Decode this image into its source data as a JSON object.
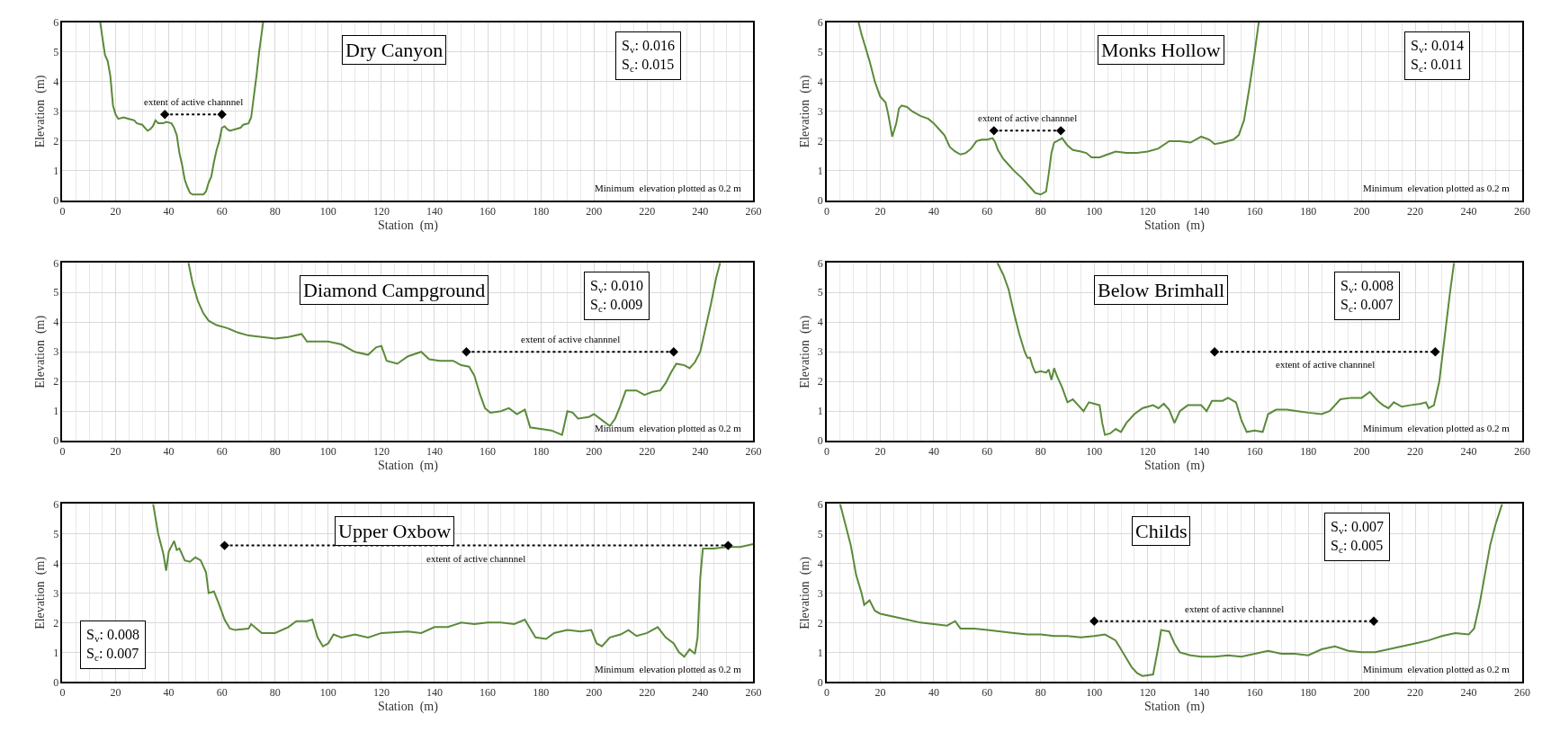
{
  "chart_data": [
    {
      "type": "line",
      "title": "Dry Canyon",
      "xlabel": "Station  (m)",
      "ylabel": "Elevation  (m)",
      "xlim": [
        0,
        260
      ],
      "xticks": [
        0,
        20,
        40,
        60,
        80,
        100,
        120,
        140,
        160,
        180,
        200,
        220,
        240,
        260
      ],
      "ylim": [
        0,
        6
      ],
      "yticks": [
        0,
        1,
        2,
        3,
        4,
        5,
        6
      ],
      "grid": true,
      "series": [
        {
          "color": "#5b8a3a",
          "x": [
            14.2,
            15,
            16,
            17,
            18,
            19,
            20,
            21,
            23,
            25,
            27,
            28,
            30,
            32,
            33,
            34,
            35,
            36,
            38,
            39,
            41,
            42,
            43,
            44,
            45,
            46,
            47,
            48,
            49,
            53,
            54,
            55,
            56,
            57,
            58,
            59,
            60,
            61,
            62,
            63,
            65,
            67,
            68,
            70,
            71,
            72,
            73,
            74,
            75.5
          ],
          "values": [
            6,
            5.5,
            4.9,
            4.7,
            4.2,
            3.2,
            2.9,
            2.75,
            2.8,
            2.75,
            2.7,
            2.6,
            2.55,
            2.35,
            2.4,
            2.5,
            2.7,
            2.6,
            2.6,
            2.65,
            2.6,
            2.45,
            2.2,
            1.6,
            1.2,
            0.7,
            0.45,
            0.25,
            0.2,
            0.2,
            0.3,
            0.6,
            0.8,
            1.3,
            1.7,
            2.0,
            2.45,
            2.5,
            2.4,
            2.35,
            2.4,
            2.45,
            2.55,
            2.6,
            2.8,
            3.5,
            4.2,
            5.0,
            6
          ]
        },
        {
          "color": "#000000",
          "x": [
            38.5,
            60
          ],
          "values": [
            2.9,
            2.9
          ],
          "marker": "diamond",
          "line_style": "dotted"
        }
      ],
      "annotations": [
        "extent of active channnel",
        "S$_{v}$: 0.016\nS$_{c}$: 0.015",
        "Minimum  elevation plotted as 0.2 m"
      ]
    },
    {
      "type": "line",
      "title": "Monks Hollow",
      "xlabel": "Station  (m)",
      "ylabel": "Elevation  (m)",
      "xlim": [
        0,
        260
      ],
      "xticks": [
        0,
        20,
        40,
        60,
        80,
        100,
        120,
        140,
        160,
        180,
        200,
        220,
        240,
        260
      ],
      "ylim": [
        0,
        6
      ],
      "yticks": [
        0,
        1,
        2,
        3,
        4,
        5,
        6
      ],
      "grid": true,
      "series": [
        {
          "color": "#5b8a3a",
          "x": [
            11.9,
            13,
            14,
            16,
            18,
            20,
            22,
            23,
            24.5,
            26,
            27,
            28,
            30,
            32,
            35,
            38,
            40,
            42,
            44,
            46,
            48,
            50,
            52,
            54,
            56,
            58,
            60,
            62,
            63,
            64,
            66,
            68,
            70,
            73,
            76,
            78,
            80,
            82,
            83,
            84,
            85,
            87,
            88,
            90,
            92,
            95,
            97,
            99,
            102,
            105,
            108,
            112,
            116,
            120,
            124,
            128,
            132,
            136,
            140,
            143,
            145,
            148,
            152,
            154,
            156,
            158,
            160,
            161.5
          ],
          "values": [
            6,
            5.6,
            5.3,
            4.7,
            4.0,
            3.5,
            3.3,
            2.9,
            2.15,
            2.6,
            3.1,
            3.2,
            3.15,
            3.0,
            2.85,
            2.75,
            2.6,
            2.4,
            2.2,
            1.8,
            1.65,
            1.55,
            1.6,
            1.75,
            2.0,
            2.05,
            2.05,
            2.1,
            1.95,
            1.7,
            1.4,
            1.2,
            1.0,
            0.75,
            0.45,
            0.25,
            0.2,
            0.3,
            0.9,
            1.6,
            1.95,
            2.05,
            2.1,
            1.85,
            1.7,
            1.65,
            1.6,
            1.45,
            1.45,
            1.55,
            1.65,
            1.6,
            1.6,
            1.65,
            1.75,
            2.0,
            2.0,
            1.95,
            2.15,
            2.05,
            1.9,
            1.95,
            2.05,
            2.2,
            2.7,
            3.8,
            5.0,
            6
          ]
        },
        {
          "color": "#000000",
          "x": [
            62.5,
            87.5
          ],
          "values": [
            2.35,
            2.35
          ],
          "marker": "diamond",
          "line_style": "dotted"
        }
      ],
      "annotations": [
        "extent of active channnel",
        "S$_{v}$: 0.014\nS$_{c}$: 0.011",
        "Minimum  elevation plotted as 0.2 m"
      ]
    },
    {
      "type": "line",
      "title": "Diamond Campground",
      "xlabel": "Station  (m)",
      "ylabel": "Elevation  (m)",
      "xlim": [
        0,
        260
      ],
      "xticks": [
        0,
        20,
        40,
        60,
        80,
        100,
        120,
        140,
        160,
        180,
        200,
        220,
        240,
        260
      ],
      "ylim": [
        0,
        6
      ],
      "yticks": [
        0,
        1,
        2,
        3,
        4,
        5,
        6
      ],
      "grid": true,
      "series": [
        {
          "color": "#5b8a3a",
          "x": [
            47.4,
            49,
            51,
            53,
            55,
            58,
            62,
            66,
            70,
            75,
            80,
            85,
            90,
            92,
            96,
            100,
            105,
            110,
            115,
            118,
            120,
            122,
            126,
            130,
            135,
            138,
            142,
            147,
            150,
            153,
            155,
            157,
            159,
            161,
            165,
            168,
            171,
            174,
            176,
            180,
            184,
            188,
            189,
            190,
            192,
            194,
            198,
            200,
            203,
            206,
            208,
            210,
            212,
            216,
            219,
            222,
            225,
            227,
            229,
            231,
            234,
            236,
            238,
            240,
            242,
            244,
            246,
            247.5
          ],
          "values": [
            6,
            5.3,
            4.7,
            4.3,
            4.05,
            3.9,
            3.8,
            3.65,
            3.55,
            3.5,
            3.45,
            3.5,
            3.6,
            3.35,
            3.35,
            3.35,
            3.25,
            3.0,
            2.9,
            3.15,
            3.2,
            2.7,
            2.6,
            2.85,
            3.0,
            2.75,
            2.7,
            2.7,
            2.55,
            2.5,
            2.2,
            1.6,
            1.1,
            0.95,
            1.0,
            1.1,
            0.9,
            1.05,
            0.45,
            0.4,
            0.35,
            0.2,
            0.6,
            1.0,
            0.95,
            0.75,
            0.8,
            0.9,
            0.7,
            0.5,
            0.75,
            1.2,
            1.7,
            1.7,
            1.55,
            1.65,
            1.7,
            1.95,
            2.3,
            2.6,
            2.55,
            2.45,
            2.65,
            3.0,
            3.8,
            4.6,
            5.5,
            6
          ]
        },
        {
          "color": "#000000",
          "x": [
            152,
            230
          ],
          "values": [
            3.0,
            3.0
          ],
          "marker": "diamond",
          "line_style": "dotted"
        }
      ],
      "annotations": [
        "extent of active channnel",
        "S$_{v}$: 0.010\nS$_{c}$: 0.009",
        "Minimum  elevation plotted as 0.2 m"
      ]
    },
    {
      "type": "line",
      "title": "Below Brimhall",
      "xlabel": "Station  (m)",
      "ylabel": "Elevation  (m)",
      "xlim": [
        0,
        260
      ],
      "xticks": [
        0,
        20,
        40,
        60,
        80,
        100,
        120,
        140,
        160,
        180,
        200,
        220,
        240,
        260
      ],
      "ylim": [
        0,
        6
      ],
      "yticks": [
        0,
        1,
        2,
        3,
        4,
        5,
        6
      ],
      "grid": true,
      "series": [
        {
          "color": "#5b8a3a",
          "x": [
            63.8,
            66,
            68,
            70,
            72,
            74,
            75,
            76,
            77,
            78,
            80,
            82,
            83,
            84,
            85,
            86,
            88,
            90,
            92,
            94,
            96,
            98,
            100,
            102,
            103,
            104,
            106,
            108,
            110,
            112,
            115,
            118,
            122,
            124,
            126,
            128,
            130,
            132,
            135,
            140,
            142,
            144,
            148,
            150,
            153,
            155,
            157,
            160,
            163,
            165,
            168,
            172,
            176,
            180,
            185,
            188,
            192,
            196,
            200,
            203,
            206,
            208,
            210,
            212,
            215,
            218,
            222,
            224,
            225,
            227,
            229,
            231,
            233,
            234.5
          ],
          "values": [
            6,
            5.6,
            5.1,
            4.3,
            3.6,
            3.0,
            2.8,
            2.8,
            2.5,
            2.3,
            2.35,
            2.3,
            2.4,
            2.05,
            2.45,
            2.2,
            1.8,
            1.3,
            1.4,
            1.2,
            1.0,
            1.3,
            1.25,
            1.2,
            0.6,
            0.2,
            0.25,
            0.4,
            0.3,
            0.6,
            0.9,
            1.1,
            1.2,
            1.1,
            1.25,
            1.05,
            0.6,
            1.0,
            1.2,
            1.2,
            1.0,
            1.35,
            1.35,
            1.45,
            1.3,
            0.7,
            0.3,
            0.35,
            0.3,
            0.9,
            1.05,
            1.05,
            1.0,
            0.95,
            0.9,
            1.0,
            1.4,
            1.45,
            1.45,
            1.65,
            1.35,
            1.2,
            1.1,
            1.3,
            1.15,
            1.2,
            1.25,
            1.3,
            1.1,
            1.2,
            2.0,
            3.5,
            5.0,
            6
          ]
        },
        {
          "color": "#000000",
          "x": [
            145,
            227.5
          ],
          "values": [
            3.0,
            3.0
          ],
          "marker": "diamond",
          "line_style": "dotted"
        }
      ],
      "annotations": [
        "extent of active channnel",
        "S$_{v}$: 0.008\nS$_{c}$: 0.007",
        "Minimum  elevation plotted as 0.2 m"
      ]
    },
    {
      "type": "line",
      "title": "Upper Oxbow",
      "xlabel": "Station  (m)",
      "ylabel": "Elevation  (m)",
      "xlim": [
        0,
        260
      ],
      "xticks": [
        0,
        20,
        40,
        60,
        80,
        100,
        120,
        140,
        160,
        180,
        200,
        220,
        240,
        260
      ],
      "ylim": [
        0,
        6
      ],
      "yticks": [
        0,
        1,
        2,
        3,
        4,
        5,
        6
      ],
      "grid": true,
      "series": [
        {
          "color": "#5b8a3a",
          "x": [
            34.1,
            36,
            38,
            39,
            40,
            42,
            43,
            44,
            46,
            48,
            50,
            52,
            54,
            55,
            57,
            59,
            61,
            63,
            65,
            70,
            71,
            75,
            80,
            85,
            88,
            92,
            94,
            96,
            98,
            100,
            102,
            105,
            110,
            115,
            120,
            130,
            135,
            140,
            145,
            150,
            155,
            160,
            165,
            170,
            174,
            176,
            178,
            182,
            185,
            190,
            195,
            199,
            201,
            203,
            206,
            210,
            213,
            216,
            220,
            224,
            227,
            230,
            232,
            234,
            236,
            238,
            239,
            240,
            241,
            245,
            250,
            255,
            260
          ],
          "values": [
            6,
            5.0,
            4.3,
            3.75,
            4.4,
            4.75,
            4.45,
            4.5,
            4.1,
            4.05,
            4.2,
            4.1,
            3.7,
            3.0,
            3.05,
            2.6,
            2.1,
            1.8,
            1.75,
            1.8,
            1.95,
            1.65,
            1.65,
            1.85,
            2.05,
            2.05,
            2.1,
            1.5,
            1.2,
            1.3,
            1.6,
            1.5,
            1.6,
            1.5,
            1.65,
            1.7,
            1.65,
            1.85,
            1.85,
            2.0,
            1.95,
            2.0,
            2.0,
            1.95,
            2.1,
            1.8,
            1.5,
            1.45,
            1.65,
            1.75,
            1.7,
            1.75,
            1.3,
            1.2,
            1.5,
            1.6,
            1.75,
            1.55,
            1.65,
            1.85,
            1.5,
            1.3,
            1.0,
            0.85,
            1.1,
            0.95,
            1.5,
            3.5,
            4.5,
            4.5,
            4.55,
            4.55,
            4.65
          ]
        },
        {
          "color": "#000000",
          "x": [
            61,
            250.5
          ],
          "values": [
            4.6,
            4.6
          ],
          "marker": "diamond",
          "line_style": "dotted"
        }
      ],
      "annotations": [
        "extent of active channnel",
        "S$_{v}$: 0.008\nS$_{c}$: 0.007",
        "Minimum  elevation plotted as 0.2 m"
      ]
    },
    {
      "type": "line",
      "title": "Childs",
      "xlabel": "Station  (m)",
      "ylabel": "Elevation  (m)",
      "xlim": [
        0,
        260
      ],
      "xticks": [
        0,
        20,
        40,
        60,
        80,
        100,
        120,
        140,
        160,
        180,
        200,
        220,
        240,
        260
      ],
      "ylim": [
        0,
        6
      ],
      "yticks": [
        0,
        1,
        2,
        3,
        4,
        5,
        6
      ],
      "grid": true,
      "series": [
        {
          "color": "#5b8a3a",
          "x": [
            5,
            7,
            9,
            11,
            13,
            14,
            16,
            18,
            20,
            25,
            30,
            35,
            40,
            45,
            48,
            50,
            55,
            60,
            65,
            70,
            75,
            80,
            85,
            90,
            95,
            100,
            104,
            108,
            110,
            112,
            114,
            116,
            118,
            122,
            124,
            125,
            128,
            130,
            132,
            136,
            140,
            145,
            150,
            155,
            160,
            165,
            170,
            175,
            180,
            185,
            190,
            195,
            200,
            205,
            210,
            215,
            220,
            225,
            230,
            235,
            240,
            242,
            244,
            246,
            248,
            250,
            252.5
          ],
          "values": [
            6,
            5.3,
            4.6,
            3.6,
            3.0,
            2.6,
            2.75,
            2.4,
            2.3,
            2.2,
            2.1,
            2.0,
            1.95,
            1.9,
            2.05,
            1.8,
            1.8,
            1.75,
            1.7,
            1.65,
            1.6,
            1.6,
            1.55,
            1.55,
            1.5,
            1.55,
            1.6,
            1.4,
            1.1,
            0.8,
            0.5,
            0.3,
            0.2,
            0.25,
            1.2,
            1.75,
            1.7,
            1.3,
            1.0,
            0.9,
            0.85,
            0.85,
            0.9,
            0.85,
            0.95,
            1.05,
            0.95,
            0.95,
            0.9,
            1.1,
            1.2,
            1.05,
            1.0,
            1.0,
            1.1,
            1.2,
            1.3,
            1.4,
            1.55,
            1.65,
            1.6,
            1.8,
            2.6,
            3.6,
            4.6,
            5.3,
            6
          ]
        },
        {
          "color": "#000000",
          "x": [
            100,
            204.5
          ],
          "values": [
            2.05,
            2.05
          ],
          "marker": "diamond",
          "line_style": "dotted"
        }
      ],
      "annotations": [
        "extent of active channnel",
        "S$_{v}$: 0.007\nS$_{c}$: 0.005",
        "Minimum  elevation plotted as 0.2 m"
      ]
    }
  ]
}
